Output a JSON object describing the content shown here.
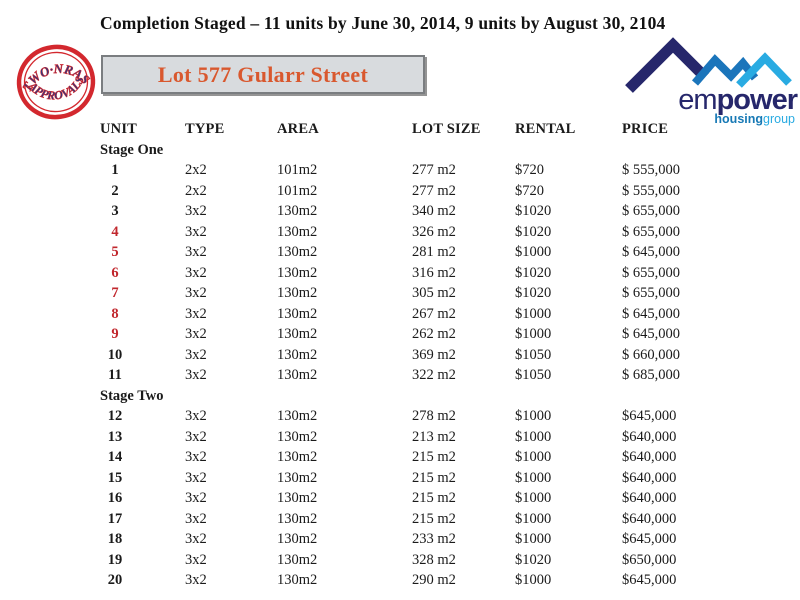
{
  "title": "Completion Staged – 11 units by June 30, 2014, 9 units by August 30, 2104",
  "stamp": {
    "line1": "TWO·NRAS",
    "line2": "APPROVALS",
    "ring_color": "#d3282e",
    "text_color": "#33367d"
  },
  "lot_box": {
    "label": "Lot 577 Gularr Street",
    "text_color": "#d9582e",
    "background": "#d8dbde"
  },
  "logo": {
    "em": "em",
    "power": "power",
    "housing": "housing",
    "group": "group",
    "navy": "#26276b",
    "mid_blue": "#1b75bb",
    "light_blue": "#29abe2"
  },
  "table": {
    "headers": [
      "UNIT",
      "TYPE",
      "AREA",
      "LOT SIZE",
      "RENTAL",
      "PRICE"
    ],
    "red_unit_color": "#c1272d",
    "sections": [
      {
        "label": "Stage One",
        "rows": [
          {
            "unit": "1",
            "red": false,
            "type": "2x2",
            "area": "101m2",
            "lot": "277 m2",
            "rental": "$720",
            "price": "$ 555,000"
          },
          {
            "unit": "2",
            "red": false,
            "type": "2x2",
            "area": "101m2",
            "lot": "277 m2",
            "rental": "$720",
            "price": "$ 555,000"
          },
          {
            "unit": "3",
            "red": false,
            "type": "3x2",
            "area": "130m2",
            "lot": "340 m2",
            "rental": "$1020",
            "price": "$ 655,000"
          },
          {
            "unit": "4",
            "red": true,
            "type": "3x2",
            "area": "130m2",
            "lot": "326 m2",
            "rental": "$1020",
            "price": "$ 655,000"
          },
          {
            "unit": "5",
            "red": true,
            "type": "3x2",
            "area": "130m2",
            "lot": "281 m2",
            "rental": "$1000",
            "price": "$ 645,000"
          },
          {
            "unit": "6",
            "red": true,
            "type": "3x2",
            "area": "130m2",
            "lot": "316 m2",
            "rental": "$1020",
            "price": "$ 655,000"
          },
          {
            "unit": "7",
            "red": true,
            "type": "3x2",
            "area": "130m2",
            "lot": "305 m2",
            "rental": "$1020",
            "price": "$ 655,000"
          },
          {
            "unit": "8",
            "red": true,
            "type": "3x2",
            "area": "130m2",
            "lot": "267 m2",
            "rental": "$1000",
            "price": "$ 645,000"
          },
          {
            "unit": "9",
            "red": true,
            "type": "3x2",
            "area": "130m2",
            "lot": "262 m2",
            "rental": "$1000",
            "price": "$ 645,000"
          },
          {
            "unit": "10",
            "red": false,
            "type": "3x2",
            "area": "130m2",
            "lot": "369 m2",
            "rental": "$1050",
            "price": "$ 660,000"
          },
          {
            "unit": "11",
            "red": false,
            "type": "3x2",
            "area": "130m2",
            "lot": "322 m2",
            "rental": "$1050",
            "price": "$ 685,000"
          }
        ]
      },
      {
        "label": "Stage Two",
        "rows": [
          {
            "unit": "12",
            "red": false,
            "type": "3x2",
            "area": "130m2",
            "lot": "278 m2",
            "rental": "$1000",
            "price": "$645,000"
          },
          {
            "unit": "13",
            "red": false,
            "type": "3x2",
            "area": "130m2",
            "lot": "213 m2",
            "rental": "$1000",
            "price": "$640,000"
          },
          {
            "unit": "14",
            "red": false,
            "type": "3x2",
            "area": "130m2",
            "lot": "215 m2",
            "rental": "$1000",
            "price": "$640,000"
          },
          {
            "unit": "15",
            "red": false,
            "type": "3x2",
            "area": "130m2",
            "lot": "215 m2",
            "rental": "$1000",
            "price": "$640,000"
          },
          {
            "unit": "16",
            "red": false,
            "type": "3x2",
            "area": "130m2",
            "lot": "215 m2",
            "rental": "$1000",
            "price": "$640,000"
          },
          {
            "unit": "17",
            "red": false,
            "type": "3x2",
            "area": "130m2",
            "lot": "215 m2",
            "rental": "$1000",
            "price": "$640,000"
          },
          {
            "unit": "18",
            "red": false,
            "type": "3x2",
            "area": "130m2",
            "lot": "233 m2",
            "rental": "$1000",
            "price": "$645,000"
          },
          {
            "unit": "19",
            "red": false,
            "type": "3x2",
            "area": "130m2",
            "lot": "328 m2",
            "rental": "$1020",
            "price": "$650,000"
          },
          {
            "unit": "20",
            "red": false,
            "type": "3x2",
            "area": "130m2",
            "lot": "290 m2",
            "rental": "$1000",
            "price": "$645,000"
          }
        ]
      }
    ]
  }
}
